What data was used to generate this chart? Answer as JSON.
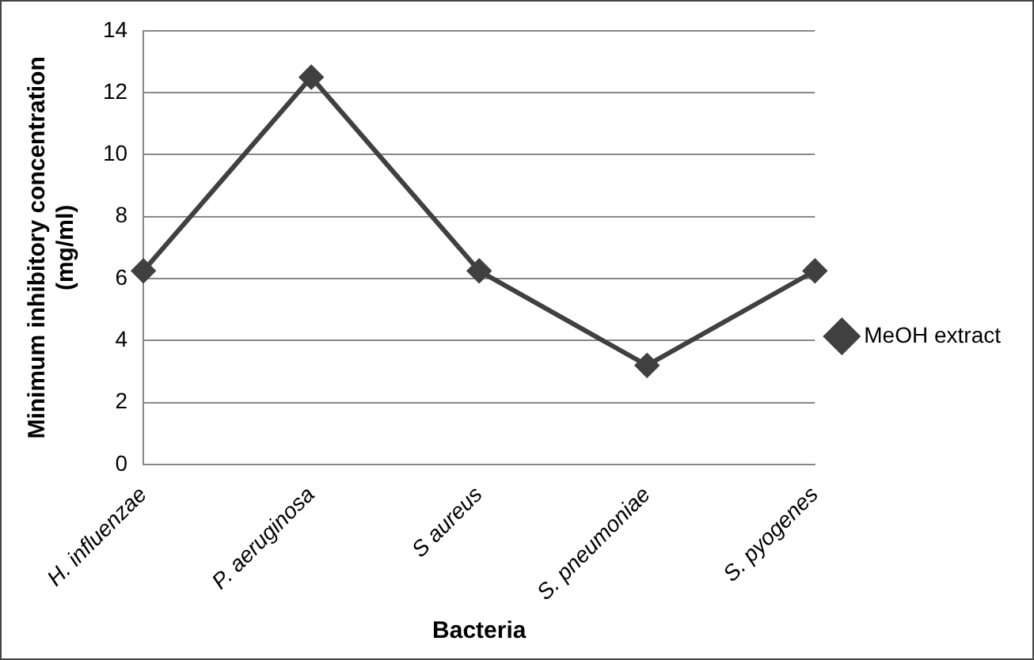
{
  "chart_data": {
    "type": "line",
    "xlabel": "Bacteria",
    "ylabel": "Minimum inhibitory concentration (mg/ml)",
    "categories": [
      "H. influenzae",
      "P. aeruginosa",
      "S aureus",
      "S. pneumoniae",
      "S. pyogenes"
    ],
    "series": [
      {
        "name": "MeOH extract",
        "color": "#404040",
        "values": [
          6.25,
          12.5,
          6.25,
          3.2,
          6.25
        ]
      }
    ],
    "ylim": [
      0,
      14
    ],
    "yticks": [
      0,
      2,
      4,
      6,
      8,
      10,
      12,
      14
    ],
    "grid": "y",
    "legend": "right",
    "marker": "diamond",
    "line_style": "solid"
  }
}
